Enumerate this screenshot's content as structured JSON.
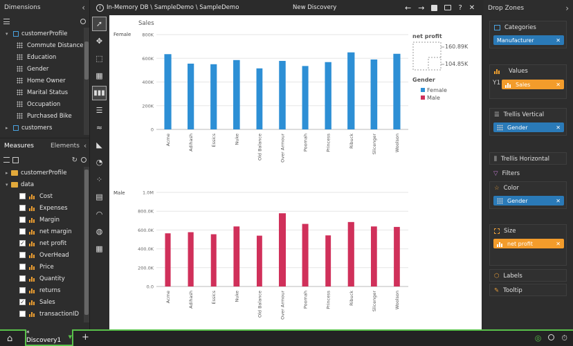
{
  "left_panel": {
    "dimensions_title": "Dimensions",
    "collapse_glyph": "‹",
    "dim_tree": [
      {
        "label": "customerProfile",
        "kind": "hierarchy",
        "level": 0,
        "expanded": true
      },
      {
        "label": "Commute Distance",
        "kind": "level",
        "level": 1
      },
      {
        "label": "Education",
        "kind": "level",
        "level": 1
      },
      {
        "label": "Gender",
        "kind": "level",
        "level": 1
      },
      {
        "label": "Home Owner",
        "kind": "level",
        "level": 1
      },
      {
        "label": "Marital Status",
        "kind": "level",
        "level": 1
      },
      {
        "label": "Occupation",
        "kind": "level",
        "level": 1
      },
      {
        "label": "Purchased Bike",
        "kind": "level",
        "level": 1
      },
      {
        "label": "customers",
        "kind": "hierarchy",
        "level": 0,
        "expanded": false
      }
    ],
    "tabs": {
      "measures": "Measures",
      "elements": "Elements"
    },
    "measure_folders": [
      {
        "label": "customerProfile",
        "expanded": false
      },
      {
        "label": "data",
        "expanded": true
      }
    ],
    "measures": [
      {
        "label": "Cost",
        "checked": false
      },
      {
        "label": "Expenses",
        "checked": false
      },
      {
        "label": "Margin",
        "checked": false
      },
      {
        "label": "net margin",
        "checked": false
      },
      {
        "label": "net profit",
        "checked": true
      },
      {
        "label": "OverHead",
        "checked": false
      },
      {
        "label": "Price",
        "checked": false
      },
      {
        "label": "Quantity",
        "checked": false
      },
      {
        "label": "returns",
        "checked": false
      },
      {
        "label": "Sales",
        "checked": true
      },
      {
        "label": "transactionID",
        "checked": false
      }
    ]
  },
  "topbar": {
    "info_icon": "info-icon",
    "path": "In-Memory DB \\ SampleDemo \\ SampleDemo",
    "title": "New Discovery",
    "help": "?",
    "close": "✕"
  },
  "canvas": {
    "measure_title": "Sales",
    "row_labels": [
      "Female",
      "Male"
    ],
    "legend": {
      "size_title": "net profit",
      "size_max": "160.89K",
      "size_min": "104.85K",
      "color_title": "Gender",
      "items": [
        {
          "label": "Female",
          "color": "#2d8fd5"
        },
        {
          "label": "Male",
          "color": "#d0305a"
        }
      ]
    }
  },
  "chart_data": [
    {
      "type": "bar",
      "title": "Female",
      "ylabel": "Sales",
      "categories": [
        "Acme",
        "Adihash",
        "Essics",
        "Nuke",
        "Old Balance",
        "Over Armour",
        "Poomah",
        "Princess",
        "Ribuck",
        "Slicenger",
        "Woolson"
      ],
      "yticks": [
        "0",
        "200K",
        "400K",
        "600K",
        "800K"
      ],
      "ylim": [
        0,
        800000
      ],
      "color": "#2d8fd5",
      "values": [
        635000,
        555000,
        550000,
        585000,
        515000,
        578000,
        535000,
        568000,
        650000,
        590000,
        638000
      ]
    },
    {
      "type": "bar",
      "title": "Male",
      "ylabel": "Sales",
      "categories": [
        "Acme",
        "Adihash",
        "Essics",
        "Nuke",
        "Old Balance",
        "Over Armour",
        "Poomah",
        "Princess",
        "Ribuck",
        "Slicenger",
        "Woolson"
      ],
      "yticks": [
        "0.0",
        "200.0K",
        "400.0K",
        "600.0K",
        "800.0K",
        "1.0M"
      ],
      "ylim": [
        0,
        1000000
      ],
      "color": "#d0305a",
      "values": [
        565000,
        577000,
        555000,
        638000,
        540000,
        778000,
        665000,
        543000,
        685000,
        638000,
        633000
      ]
    }
  ],
  "right_panel": {
    "title": "Drop Zones",
    "zones": {
      "categories": {
        "title": "Categories",
        "pill": "Manufacturer"
      },
      "values": {
        "title": "Values",
        "axis": "Y1",
        "pill": "Sales"
      },
      "trellis_v": {
        "title": "Trellis Vertical",
        "pill": "Gender"
      },
      "trellis_h": {
        "title": "Trellis Horizontal"
      },
      "filters": {
        "title": "Filters"
      },
      "color": {
        "title": "Color",
        "pill": "Gender"
      },
      "size": {
        "title": "Size",
        "pill": "net profit"
      },
      "labels": {
        "title": "Labels"
      },
      "tooltip": {
        "title": "Tooltip"
      }
    },
    "remove_glyph": "✕"
  },
  "bottom": {
    "tab_label": "* Discovery1",
    "add": "+"
  }
}
